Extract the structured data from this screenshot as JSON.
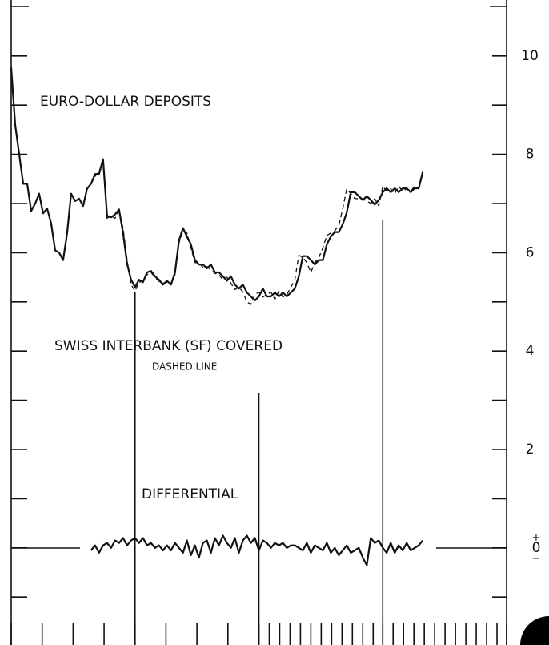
{
  "chart_data": {
    "type": "line",
    "annotations": [
      "EURO-DOLLAR DEPOSITS",
      "SWISS INTERBANK (SF) COVERED",
      "DASHED LINE",
      "DIFFERENTIAL"
    ],
    "x": [
      0,
      1,
      2,
      3,
      4,
      5,
      6,
      7,
      8,
      9,
      10,
      11,
      12,
      13,
      14,
      15,
      16,
      17,
      18,
      19,
      20,
      21,
      22,
      23,
      24,
      25,
      26,
      27,
      28,
      29,
      30,
      31,
      32,
      33,
      34,
      35,
      36,
      37,
      38,
      39,
      40,
      41,
      42,
      43,
      44,
      45,
      46,
      47,
      48,
      49,
      50,
      51,
      52,
      53,
      54,
      55,
      56,
      57,
      58,
      59,
      60,
      61,
      62,
      63,
      64,
      65,
      66,
      67,
      68,
      69,
      70,
      71,
      72,
      73,
      74,
      75,
      76,
      77,
      78,
      79,
      80,
      81,
      82,
      83,
      84,
      85,
      86,
      87,
      88,
      89,
      90,
      91,
      92,
      93,
      94,
      95,
      96,
      97,
      98,
      99,
      100,
      101,
      102,
      103
    ],
    "series": [
      {
        "name": "EURO-DOLLAR DEPOSITS",
        "color": "#111111",
        "style": "solid",
        "values": [
          9.76,
          8.6,
          8.0,
          7.4,
          7.4,
          6.85,
          7.0,
          7.2,
          6.8,
          6.9,
          6.6,
          6.05,
          6.0,
          5.85,
          6.4,
          7.2,
          7.05,
          7.1,
          6.95,
          7.3,
          7.4,
          7.6,
          7.6,
          7.9,
          6.75,
          6.72,
          6.78,
          6.88,
          6.4,
          5.78,
          5.45,
          5.3,
          5.45,
          5.4,
          5.6,
          5.63,
          5.52,
          5.45,
          5.35,
          5.43,
          5.35,
          5.6,
          6.25,
          6.5,
          6.33,
          6.17,
          5.85,
          5.76,
          5.76,
          5.68,
          5.76,
          5.6,
          5.6,
          5.52,
          5.43,
          5.52,
          5.35,
          5.27,
          5.35,
          5.19,
          5.11,
          5.03,
          5.11,
          5.27,
          5.11,
          5.11,
          5.19,
          5.11,
          5.19,
          5.11,
          5.19,
          5.27,
          5.52,
          5.93,
          5.93,
          5.85,
          5.76,
          5.85,
          5.85,
          6.17,
          6.33,
          6.42,
          6.42,
          6.58,
          6.82,
          7.23,
          7.23,
          7.15,
          7.07,
          7.15,
          7.07,
          6.98,
          7.07,
          7.23,
          7.31,
          7.23,
          7.31,
          7.23,
          7.31,
          7.31,
          7.23,
          7.31,
          7.31,
          7.64
        ]
      },
      {
        "name": "SWISS INTERBANK (SF) COVERED",
        "color": "#111111",
        "style": "dashed",
        "values": [
          null,
          null,
          null,
          null,
          null,
          null,
          null,
          null,
          null,
          null,
          null,
          null,
          null,
          null,
          null,
          null,
          null,
          null,
          null,
          null,
          7.4,
          7.55,
          7.65,
          7.85,
          6.7,
          6.75,
          6.7,
          6.85,
          6.5,
          5.85,
          5.35,
          5.22,
          5.4,
          5.42,
          5.55,
          5.6,
          5.5,
          5.42,
          5.38,
          5.4,
          5.38,
          5.55,
          6.2,
          6.45,
          6.4,
          6.1,
          5.8,
          5.8,
          5.7,
          5.72,
          5.65,
          5.58,
          5.55,
          5.45,
          5.5,
          5.38,
          5.25,
          5.3,
          5.2,
          5.0,
          4.95,
          5.15,
          5.2,
          5.1,
          5.15,
          5.2,
          5.05,
          5.22,
          5.1,
          5.15,
          5.3,
          5.45,
          5.95,
          5.9,
          5.8,
          5.6,
          5.8,
          5.9,
          6.1,
          6.35,
          6.4,
          6.45,
          6.55,
          6.9,
          7.3,
          7.2,
          7.1,
          7.1,
          7.1,
          7.05,
          7.0,
          7.1,
          6.95,
          7.35,
          7.25,
          7.3,
          7.2,
          7.35,
          7.25,
          7.3,
          7.25,
          7.35,
          7.3,
          7.6
        ]
      },
      {
        "name": "DIFFERENTIAL",
        "color": "#111111",
        "style": "solid",
        "values": [
          null,
          null,
          null,
          null,
          null,
          null,
          null,
          null,
          null,
          null,
          null,
          null,
          null,
          null,
          null,
          null,
          null,
          null,
          null,
          null,
          -0.05,
          0.05,
          -0.1,
          0.05,
          0.1,
          0.0,
          0.15,
          0.1,
          0.2,
          0.05,
          0.15,
          0.2,
          0.1,
          0.2,
          0.05,
          0.1,
          0.0,
          0.05,
          -0.05,
          0.05,
          -0.05,
          0.1,
          0.0,
          -0.1,
          0.15,
          -0.15,
          0.05,
          -0.2,
          0.1,
          0.15,
          -0.1,
          0.2,
          0.05,
          0.25,
          0.1,
          0.0,
          0.2,
          -0.1,
          0.15,
          0.25,
          0.1,
          0.2,
          -0.05,
          0.15,
          0.1,
          0.0,
          0.1,
          0.05,
          0.1,
          0.0,
          0.05,
          0.05,
          0.0,
          -0.05,
          0.1,
          -0.1,
          0.05,
          0.0,
          -0.05,
          0.1,
          -0.1,
          0.0,
          -0.15,
          -0.05,
          0.05,
          -0.1,
          -0.05,
          0.0,
          -0.2,
          -0.35,
          0.2,
          0.1,
          0.15,
          0.0,
          -0.1,
          0.1,
          -0.1,
          0.05,
          -0.05,
          0.1,
          -0.05,
          0.0,
          0.05,
          0.15
        ]
      }
    ],
    "xlim": [
      0,
      124
    ],
    "xticks_unlabeled": [
      0,
      7.75,
      15.5,
      23.25,
      31,
      38.75,
      46.5,
      54.25,
      62,
      64.6,
      67.2,
      69.8,
      72.4,
      75,
      77.6,
      80.2,
      82.8,
      85.4,
      88,
      90.6,
      93,
      95.6,
      98.2,
      100.8,
      103.4,
      106,
      108.6,
      111.2,
      113.8,
      116.4,
      119,
      121.6,
      124
    ],
    "vlines": [
      31,
      62,
      93
    ],
    "ylim": [
      -2,
      11
    ],
    "yticks": [
      {
        "value": 0,
        "label": "+0−"
      },
      2,
      4,
      6,
      8,
      10
    ],
    "yticks_unlabeled": [
      -1,
      1,
      3,
      5,
      7,
      9
    ],
    "y_axis_side": "right"
  }
}
